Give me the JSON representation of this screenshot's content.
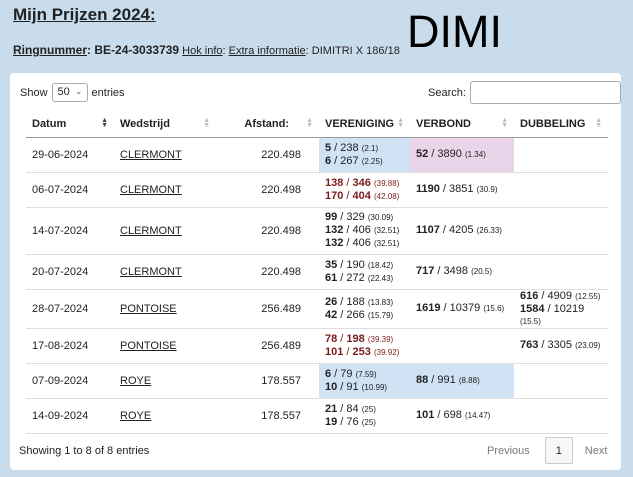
{
  "title": "Mijn Prijzen 2024:",
  "big_name": "DIMI",
  "ring": {
    "label": "Ringnummer",
    "value": "BE-24-3033739",
    "hok_info": "Hok info",
    "extra_label": "Extra informatie",
    "extra_value": "DIMITRI X 186/18"
  },
  "controls": {
    "show_label": "Show",
    "entries_value": "50",
    "entries_label": "entries",
    "search_label": "Search:",
    "search_value": ""
  },
  "columns": [
    "Datum",
    "Wedstrijd",
    "Afstand:",
    "VERENIGING",
    "VERBOND",
    "DUBBELING"
  ],
  "rows": [
    {
      "datum": "29-06-2024",
      "wedstrijd": "CLERMONT",
      "afstand": "220.498",
      "ver": [
        {
          "rank": "5",
          "total": "238",
          "pct": "(2.1)",
          "red": false
        },
        {
          "rank": "6",
          "total": "267",
          "pct": "(2.25)",
          "red": false
        }
      ],
      "verb": [
        {
          "rank": "52",
          "total": "3890",
          "pct": "(1.34)",
          "red": false
        }
      ],
      "dub": [],
      "ver_bg": "#cfe3f5",
      "verb_bg": "#ead4ea",
      "height": 35
    },
    {
      "datum": "06-07-2024",
      "wedstrijd": "CLERMONT",
      "afstand": "220.498",
      "ver": [
        {
          "rank": "138",
          "total": "346",
          "pct": "(39.88)",
          "red": true
        },
        {
          "rank": "170",
          "total": "404",
          "pct": "(42.08)",
          "red": true
        }
      ],
      "verb": [
        {
          "rank": "1190",
          "total": "3851",
          "pct": "(30.9)",
          "red": false
        }
      ],
      "dub": [],
      "ver_bg": "",
      "verb_bg": "",
      "height": 35
    },
    {
      "datum": "14-07-2024",
      "wedstrijd": "CLERMONT",
      "afstand": "220.498",
      "ver": [
        {
          "rank": "99",
          "total": "329",
          "pct": "(30.09)",
          "red": false
        },
        {
          "rank": "132",
          "total": "406",
          "pct": "(32.51)",
          "red": false
        },
        {
          "rank": "132",
          "total": "406",
          "pct": "(32.51)",
          "red": false
        }
      ],
      "verb": [
        {
          "rank": "1107",
          "total": "4205",
          "pct": "(26.33)",
          "red": false
        }
      ],
      "dub": [],
      "ver_bg": "",
      "verb_bg": "",
      "height": 47
    },
    {
      "datum": "20-07-2024",
      "wedstrijd": "CLERMONT",
      "afstand": "220.498",
      "ver": [
        {
          "rank": "35",
          "total": "190",
          "pct": "(18.42)",
          "red": false
        },
        {
          "rank": "61",
          "total": "272",
          "pct": "(22.43)",
          "red": false
        }
      ],
      "verb": [
        {
          "rank": "717",
          "total": "3498",
          "pct": "(20.5)",
          "red": false
        }
      ],
      "dub": [],
      "ver_bg": "",
      "verb_bg": "",
      "height": 35
    },
    {
      "datum": "28-07-2024",
      "wedstrijd": "PONTOISE",
      "afstand": "256.489",
      "ver": [
        {
          "rank": "26",
          "total": "188",
          "pct": "(13.83)",
          "red": false
        },
        {
          "rank": "42",
          "total": "266",
          "pct": "(15.79)",
          "red": false
        }
      ],
      "verb": [
        {
          "rank": "1619",
          "total": "10379",
          "pct": "(15.6)",
          "red": false
        }
      ],
      "dub": [
        {
          "rank": "616",
          "total": "4909",
          "pct": "(12.55)",
          "red": false
        },
        {
          "rank": "1584",
          "total": "10219",
          "pct": "(15.5)",
          "red": false
        }
      ],
      "ver_bg": "",
      "verb_bg": "",
      "height": 35
    },
    {
      "datum": "17-08-2024",
      "wedstrijd": "PONTOISE",
      "afstand": "256.489",
      "ver": [
        {
          "rank": "78",
          "total": "198",
          "pct": "(39.39)",
          "red": true
        },
        {
          "rank": "101",
          "total": "253",
          "pct": "(39.92)",
          "red": true
        }
      ],
      "verb": [],
      "dub": [
        {
          "rank": "763",
          "total": "3305",
          "pct": "(23.09)",
          "red": false
        }
      ],
      "ver_bg": "",
      "verb_bg": "",
      "height": 35
    },
    {
      "datum": "07-09-2024",
      "wedstrijd": "ROYE",
      "afstand": "178.557",
      "ver": [
        {
          "rank": "6",
          "total": "79",
          "pct": "(7.59)",
          "red": false
        },
        {
          "rank": "10",
          "total": "91",
          "pct": "(10.99)",
          "red": false
        }
      ],
      "verb": [
        {
          "rank": "88",
          "total": "991",
          "pct": "(8.88)",
          "red": false
        }
      ],
      "dub": [],
      "ver_bg": "#cfe3f5",
      "verb_bg": "#cfe3f5",
      "height": 35
    },
    {
      "datum": "14-09-2024",
      "wedstrijd": "ROYE",
      "afstand": "178.557",
      "ver": [
        {
          "rank": "21",
          "total": "84",
          "pct": "(25)",
          "red": false
        },
        {
          "rank": "19",
          "total": "76",
          "pct": "(25)",
          "red": false
        }
      ],
      "verb": [
        {
          "rank": "101",
          "total": "698",
          "pct": "(14.47)",
          "red": false
        }
      ],
      "dub": [],
      "ver_bg": "",
      "verb_bg": "",
      "height": 35
    }
  ],
  "footer": {
    "info": "Showing 1 to 8 of 8 entries",
    "previous": "Previous",
    "page": "1",
    "next": "Next"
  }
}
